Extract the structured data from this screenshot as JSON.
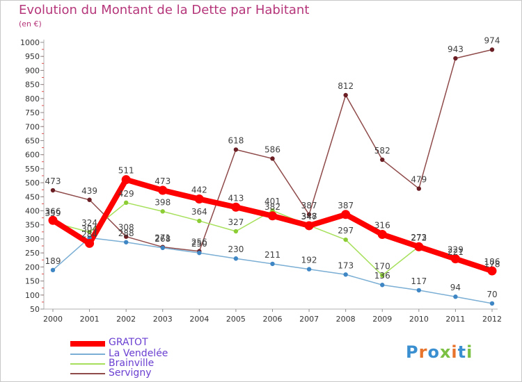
{
  "title": "Evolution du Montant de la Dette par Habitant",
  "unit": "(en €)",
  "logo": {
    "text": "Proxiti"
  },
  "chart_data": {
    "type": "line",
    "categories": [
      "2000",
      "2001",
      "2002",
      "2003",
      "2004",
      "2005",
      "2006",
      "2007",
      "2008",
      "2009",
      "2010",
      "2011",
      "2012"
    ],
    "ylim": [
      50,
      1000
    ],
    "yticks": [
      50,
      100,
      150,
      200,
      250,
      300,
      350,
      400,
      450,
      500,
      550,
      600,
      650,
      700,
      750,
      800,
      850,
      900,
      950,
      1000
    ],
    "grid": false,
    "legend_position": "bottom-left",
    "series": [
      {
        "name": "GRATOT",
        "color": "#ff0000",
        "point_color": "#ff0000",
        "values": [
          366,
          284,
          511,
          473,
          442,
          413,
          382,
          347,
          387,
          316,
          272,
          229,
          186
        ]
      },
      {
        "name": "La Vendelée",
        "color": "#7aaed4",
        "point_color": "#3f86c5",
        "values": [
          189,
          304,
          288,
          268,
          250,
          230,
          211,
          192,
          173,
          136,
          117,
          94,
          70
        ]
      },
      {
        "name": "Brainville",
        "color": "#a6e05a",
        "point_color": "#8ccc34",
        "values": [
          359,
          324,
          429,
          398,
          364,
          327,
          401,
          348,
          297,
          170,
          273,
          221,
          178
        ]
      },
      {
        "name": "Servigny",
        "color": "#8f4a4a",
        "point_color": "#6b1f24",
        "values": [
          473,
          439,
          308,
          271,
          256,
          618,
          586,
          387,
          812,
          582,
          479,
          943,
          974
        ]
      }
    ]
  }
}
